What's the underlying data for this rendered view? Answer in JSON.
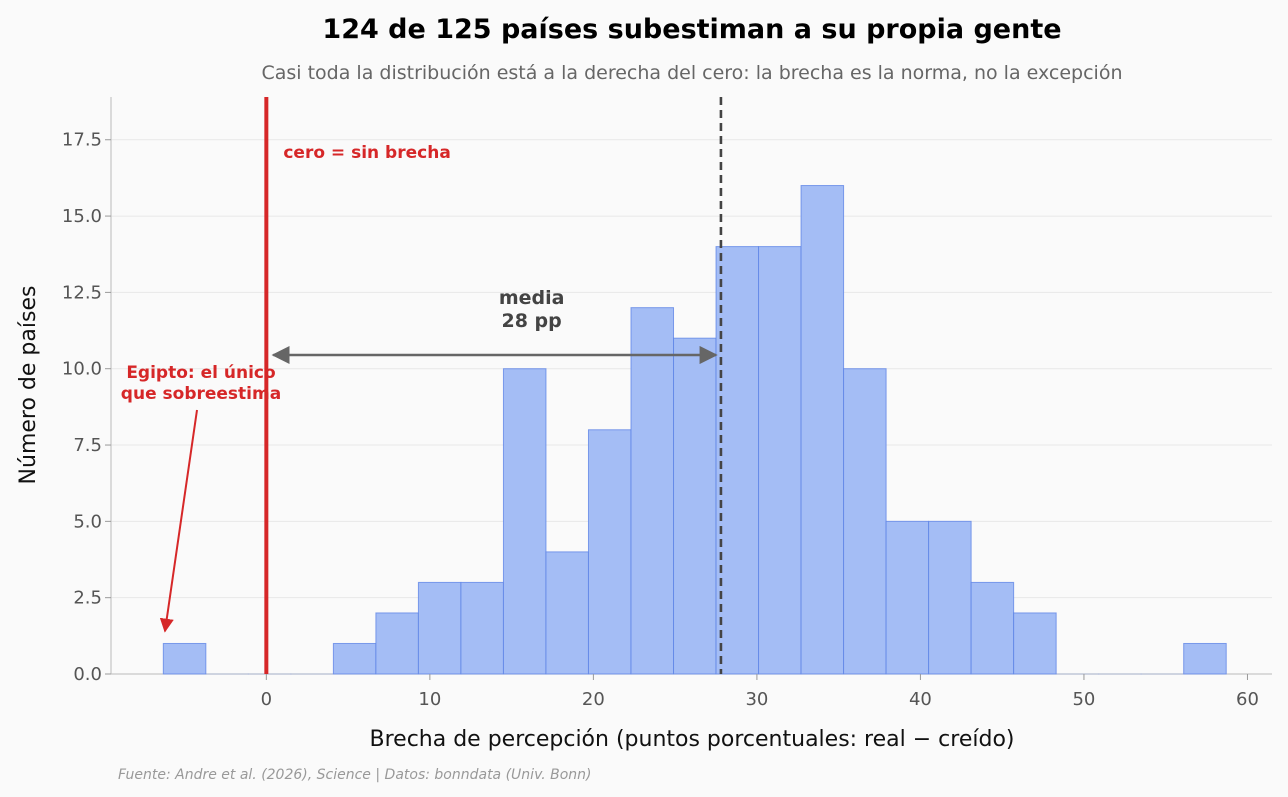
{
  "chart_data": {
    "type": "bar",
    "title": "124 de 125 países subestiman a su propia gente",
    "subtitle": "Casi toda la distribución está a la derecha del cero: la brecha es la norma, no la excepción",
    "xlabel": "Brecha de percepción (puntos porcentuales: real − creído)",
    "ylabel": "Número de países",
    "xlim": [
      -9.5,
      61.5
    ],
    "ylim": [
      0,
      18.9
    ],
    "xticks": [
      "0",
      "10",
      "20",
      "30",
      "40",
      "50",
      "60"
    ],
    "yticks": [
      "0.0",
      "2.5",
      "5.0",
      "7.5",
      "10.0",
      "12.5",
      "15.0",
      "17.5"
    ],
    "grid": true,
    "bins": [
      {
        "x0": -6.3,
        "x1": -3.7,
        "count": 1
      },
      {
        "x0": -3.7,
        "x1": -1.1,
        "count": 0
      },
      {
        "x0": -1.1,
        "x1": 1.5,
        "count": 0
      },
      {
        "x0": 1.5,
        "x1": 4.1,
        "count": 0
      },
      {
        "x0": 4.1,
        "x1": 6.7,
        "count": 1
      },
      {
        "x0": 6.7,
        "x1": 9.3,
        "count": 2
      },
      {
        "x0": 9.3,
        "x1": 11.9,
        "count": 3
      },
      {
        "x0": 11.9,
        "x1": 14.5,
        "count": 3
      },
      {
        "x0": 14.5,
        "x1": 17.1,
        "count": 10
      },
      {
        "x0": 17.1,
        "x1": 19.7,
        "count": 4
      },
      {
        "x0": 19.7,
        "x1": 22.3,
        "count": 8
      },
      {
        "x0": 22.3,
        "x1": 24.9,
        "count": 12
      },
      {
        "x0": 24.9,
        "x1": 27.5,
        "count": 11
      },
      {
        "x0": 27.5,
        "x1": 30.1,
        "count": 14
      },
      {
        "x0": 30.1,
        "x1": 32.7,
        "count": 14
      },
      {
        "x0": 32.7,
        "x1": 35.3,
        "count": 16
      },
      {
        "x0": 35.3,
        "x1": 37.9,
        "count": 10
      },
      {
        "x0": 37.9,
        "x1": 40.5,
        "count": 5
      },
      {
        "x0": 40.5,
        "x1": 43.1,
        "count": 5
      },
      {
        "x0": 43.1,
        "x1": 45.7,
        "count": 3
      },
      {
        "x0": 45.7,
        "x1": 48.3,
        "count": 2
      },
      {
        "x0": 48.3,
        "x1": 50.9,
        "count": 0
      },
      {
        "x0": 50.9,
        "x1": 53.5,
        "count": 0
      },
      {
        "x0": 53.5,
        "x1": 56.1,
        "count": 0
      },
      {
        "x0": 56.1,
        "x1": 58.7,
        "count": 1
      }
    ],
    "zero_line": {
      "x": 0,
      "label": "cero = sin brecha",
      "color": "#d62728"
    },
    "mean_line": {
      "x": 27.8,
      "label_line1": "media",
      "label_line2": "28 pp"
    },
    "outlier_annotation": {
      "line1": "Egipto: el único",
      "line2": "que sobreestima",
      "point": [
        -6.2,
        1.4
      ]
    },
    "source": "Fuente: Andre et al. (2026), Science | Datos: bonndata (Univ. Bonn)",
    "colors": {
      "bar_fill": "#a4bdf5",
      "bar_stroke": "#5b82e6",
      "highlight": "#d62728",
      "mean": "#444444",
      "arrow": "#666666"
    }
  }
}
